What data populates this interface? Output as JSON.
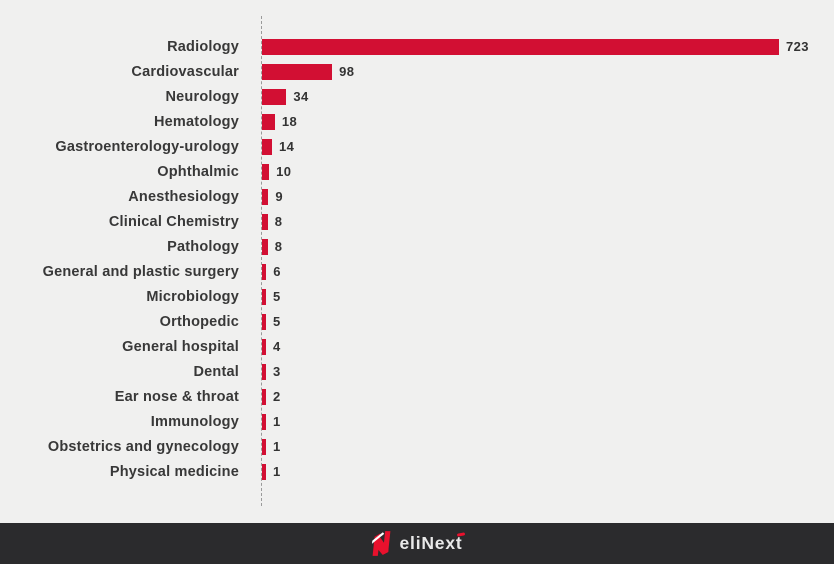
{
  "page": {
    "background": "#f0f0ef"
  },
  "chart_data": {
    "type": "bar",
    "orientation": "horizontal",
    "title": "",
    "xlabel": "",
    "ylabel": "",
    "categories": [
      "Radiology",
      "Cardiovascular",
      "Neurology",
      "Hematology",
      "Gastroenterology-urology",
      "Ophthalmic",
      "Anesthesiology",
      "Clinical Chemistry",
      "Pathology",
      "General and plastic surgery",
      "Microbiology",
      "Orthopedic",
      "General hospital",
      "Dental",
      "Ear nose & throat",
      "Immunology",
      "Obstetrics and gynecology",
      "Physical medicine"
    ],
    "values": [
      723,
      98,
      34,
      18,
      14,
      10,
      9,
      8,
      8,
      6,
      5,
      5,
      4,
      3,
      2,
      1,
      1,
      1
    ],
    "xlim": [
      0,
      723
    ],
    "bar_color": "#d20f33",
    "label_color": "#383838",
    "value_label_color": "#333333",
    "axis_line_style": "dashed-vertical",
    "grid": false,
    "legend": false,
    "value_labels_shown": true
  },
  "footer": {
    "brand": "eliNext",
    "background": "#2b2b2d",
    "accent_color": "#e8112d",
    "text_color": "#e9e9e9"
  }
}
